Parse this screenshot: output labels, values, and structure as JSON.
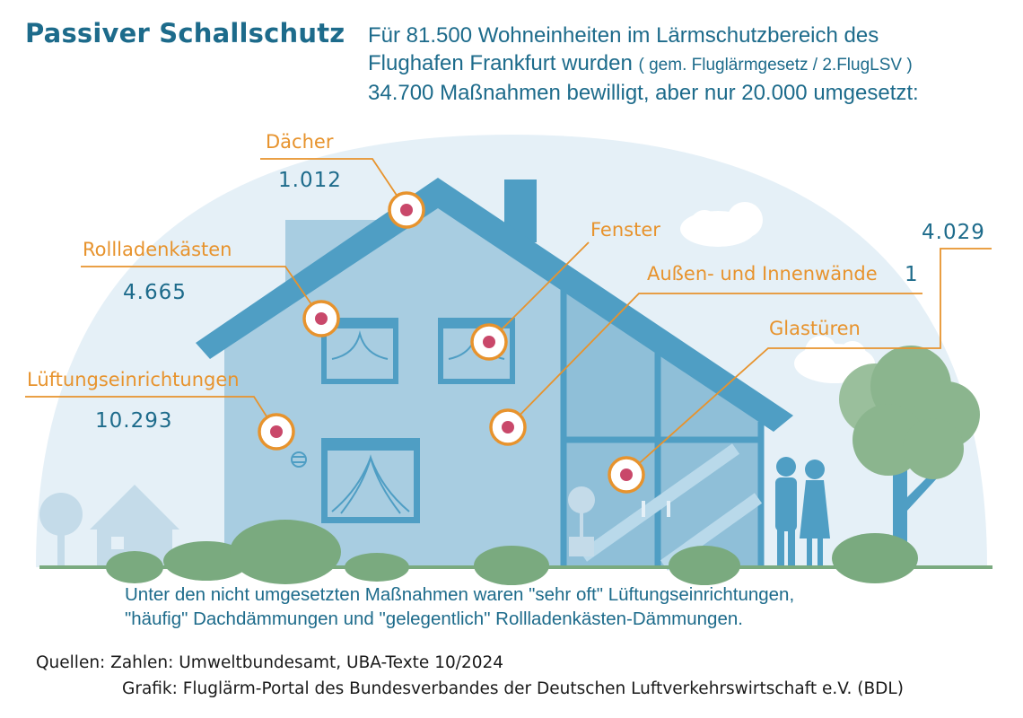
{
  "title": "Passiver Schallschutz",
  "headline": {
    "line1": "Für 81.500 Wohneinheiten im Lärmschutzbereich des",
    "line2_main": "Flughafen Frankfurt wurden",
    "line2_small": "( gem. Fluglärmgesetz / 2.FlugLSV )",
    "line3": "34.700 Maßnahmen bewilligt, aber nur 20.000 umgesetzt:"
  },
  "measures": [
    {
      "label": "Dächer",
      "value": "1.012"
    },
    {
      "label": "Rollladenkästen",
      "value": "4.665"
    },
    {
      "label": "Lüftungseinrichtungen",
      "value": "10.293"
    },
    {
      "label": "Fenster",
      "value": "4.029"
    },
    {
      "label": "Außen- und Innenwände",
      "value": "1"
    },
    {
      "label": "Glastüren",
      "value": ""
    }
  ],
  "note": {
    "line1": "Unter den nicht umgesetzten Maßnahmen waren \"sehr oft\" Lüftungseinrichtungen,",
    "line2": "\"häufig\" Dachdämmungen und \"gelegentlich\" Rollladenkästen-Dämmungen."
  },
  "sources": {
    "line1": "Quellen:  Zahlen: Umweltbundesamt, UBA-Texte 10/2024",
    "line2": "Grafik: Fluglärm-Portal des Bundesverbandes der Deutschen Luftverkehrswirtschaft e.V. (BDL)"
  },
  "colors": {
    "accent_orange": "#e7932d",
    "text_blue": "#1d6b8b",
    "marker_red": "#c9486a",
    "roof_blue": "#4f9ec4",
    "bush_green": "#7aaa7f"
  }
}
